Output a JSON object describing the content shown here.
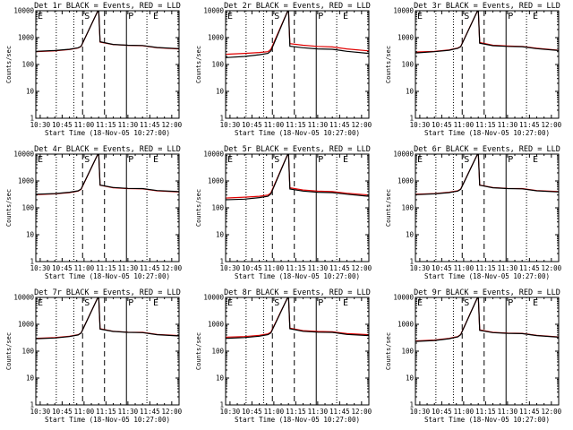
{
  "colors": {
    "events": "#000000",
    "lld": "#e00000",
    "background": "#ffffff"
  },
  "chart_data": [
    {
      "type": "line",
      "title": "Det 1r  BLACK = Events, RED = LLD",
      "xlabel": "Start Time (18-Nov-05 10:27:00)",
      "ylabel": "Counts/sec",
      "xlim": [
        "10:27",
        "12:05"
      ],
      "ylim": [
        1,
        10000
      ],
      "yscale": "log",
      "xticks": [
        "10:30",
        "10:45",
        "11:00",
        "11:15",
        "11:30",
        "11:45",
        "12:00"
      ],
      "yticks": [
        "1",
        "10",
        "100",
        "1000",
        "10000"
      ],
      "grid": false,
      "markers": [
        {
          "label": "S",
          "time": "10:59"
        },
        {
          "label": "P",
          "time": "11:29"
        },
        {
          "label": "E",
          "time": "11:46"
        }
      ],
      "dotted_lines": [
        "10:41",
        "10:53",
        "11:43"
      ],
      "dashed_lines": [
        "10:59",
        "11:14"
      ],
      "solid_lines": [
        "11:29"
      ],
      "series": [
        {
          "name": "Events",
          "x": [
            "10:27",
            "10:40",
            "10:50",
            "10:56",
            "10:58",
            "11:10",
            "11:11",
            "11:20",
            "11:30",
            "11:40",
            "11:50",
            "12:05"
          ],
          "values": [
            310,
            330,
            370,
            420,
            480,
            12000,
            700,
            560,
            520,
            510,
            430,
            390
          ]
        },
        {
          "name": "LLD",
          "x": [
            "10:27",
            "10:40",
            "10:50",
            "10:56",
            "10:58",
            "11:10",
            "11:11",
            "11:20",
            "11:30",
            "11:40",
            "11:50",
            "12:05"
          ],
          "values": [
            300,
            320,
            360,
            410,
            470,
            12000,
            680,
            550,
            515,
            500,
            420,
            380
          ]
        }
      ]
    },
    {
      "type": "line",
      "title": "Det 2r  BLACK = Events, RED = LLD",
      "xlabel": "Start Time (18-Nov-05 10:27:00)",
      "ylabel": "Counts/sec",
      "xlim": [
        "10:27",
        "12:05"
      ],
      "ylim": [
        1,
        10000
      ],
      "yscale": "log",
      "xticks": [
        "10:30",
        "10:45",
        "11:00",
        "11:15",
        "11:30",
        "11:45",
        "12:00"
      ],
      "yticks": [
        "1",
        "10",
        "100",
        "1000",
        "10000"
      ],
      "grid": false,
      "markers": [
        {
          "label": "S",
          "time": "10:59"
        },
        {
          "label": "P",
          "time": "11:29"
        },
        {
          "label": "E",
          "time": "11:46"
        }
      ],
      "dotted_lines": [
        "10:41",
        "10:53",
        "11:43"
      ],
      "dashed_lines": [
        "10:59",
        "11:14"
      ],
      "solid_lines": [
        "11:29"
      ],
      "series": [
        {
          "name": "Events",
          "x": [
            "10:27",
            "10:40",
            "10:50",
            "10:56",
            "10:58",
            "11:10",
            "11:11",
            "11:20",
            "11:30",
            "11:40",
            "11:50",
            "12:05"
          ],
          "values": [
            180,
            200,
            230,
            260,
            320,
            12000,
            480,
            420,
            380,
            370,
            310,
            260
          ]
        },
        {
          "name": "LLD",
          "x": [
            "10:27",
            "10:40",
            "10:50",
            "10:56",
            "10:58",
            "11:10",
            "11:11",
            "11:20",
            "11:30",
            "11:40",
            "11:50",
            "12:05"
          ],
          "values": [
            240,
            260,
            280,
            300,
            370,
            12000,
            600,
            520,
            470,
            450,
            380,
            320
          ]
        }
      ]
    },
    {
      "type": "line",
      "title": "Det 3r  BLACK = Events, RED = LLD",
      "xlabel": "Start Time (18-Nov-05 10:27:00)",
      "ylabel": "Counts/sec",
      "xlim": [
        "10:27",
        "12:05"
      ],
      "ylim": [
        1,
        10000
      ],
      "yscale": "log",
      "xticks": [
        "10:30",
        "10:45",
        "11:00",
        "11:15",
        "11:30",
        "11:45",
        "12:00"
      ],
      "yticks": [
        "1",
        "10",
        "100",
        "1000",
        "10000"
      ],
      "grid": false,
      "markers": [
        {
          "label": "S",
          "time": "10:59"
        },
        {
          "label": "P",
          "time": "11:29"
        },
        {
          "label": "E",
          "time": "11:46"
        }
      ],
      "dotted_lines": [
        "10:41",
        "10:53",
        "11:43"
      ],
      "dashed_lines": [
        "10:59",
        "11:14"
      ],
      "solid_lines": [
        "11:29"
      ],
      "series": [
        {
          "name": "Events",
          "x": [
            "10:27",
            "10:40",
            "10:50",
            "10:56",
            "10:58",
            "11:10",
            "11:11",
            "11:20",
            "11:30",
            "11:40",
            "11:50",
            "12:05"
          ],
          "values": [
            270,
            300,
            340,
            400,
            460,
            12000,
            620,
            500,
            470,
            460,
            390,
            330
          ]
        },
        {
          "name": "LLD",
          "x": [
            "10:27",
            "10:40",
            "10:50",
            "10:56",
            "10:58",
            "11:10",
            "11:11",
            "11:20",
            "11:30",
            "11:40",
            "11:50",
            "12:05"
          ],
          "values": [
            290,
            310,
            350,
            410,
            470,
            12000,
            660,
            520,
            490,
            470,
            400,
            340
          ]
        }
      ]
    },
    {
      "type": "line",
      "title": "Det 4r  BLACK = Events, RED = LLD",
      "xlabel": "Start Time (18-Nov-05 10:27:00)",
      "ylabel": "Counts/sec",
      "xlim": [
        "10:27",
        "12:05"
      ],
      "ylim": [
        1,
        10000
      ],
      "yscale": "log",
      "xticks": [
        "10:30",
        "10:45",
        "11:00",
        "11:15",
        "11:30",
        "11:45",
        "12:00"
      ],
      "yticks": [
        "1",
        "10",
        "100",
        "1000",
        "10000"
      ],
      "grid": false,
      "markers": [
        {
          "label": "S",
          "time": "10:59"
        },
        {
          "label": "P",
          "time": "11:29"
        },
        {
          "label": "E",
          "time": "11:46"
        }
      ],
      "dotted_lines": [
        "10:41",
        "10:53",
        "11:43"
      ],
      "dashed_lines": [
        "10:59",
        "11:14"
      ],
      "solid_lines": [
        "11:29"
      ],
      "series": [
        {
          "name": "Events",
          "x": [
            "10:27",
            "10:40",
            "10:50",
            "10:56",
            "10:58",
            "11:10",
            "11:11",
            "11:20",
            "11:30",
            "11:40",
            "11:50",
            "12:05"
          ],
          "values": [
            320,
            340,
            380,
            430,
            500,
            12000,
            700,
            570,
            530,
            520,
            440,
            400
          ]
        },
        {
          "name": "LLD",
          "x": [
            "10:27",
            "10:40",
            "10:50",
            "10:56",
            "10:58",
            "11:10",
            "11:11",
            "11:20",
            "11:30",
            "11:40",
            "11:50",
            "12:05"
          ],
          "values": [
            310,
            330,
            370,
            420,
            490,
            12000,
            690,
            560,
            520,
            510,
            430,
            390
          ]
        }
      ]
    },
    {
      "type": "line",
      "title": "Det 5r  BLACK = Events, RED = LLD",
      "xlabel": "Start Time (18-Nov-05 10:27:00)",
      "ylabel": "Counts/sec",
      "xlim": [
        "10:27",
        "12:05"
      ],
      "ylim": [
        1,
        10000
      ],
      "yscale": "log",
      "xticks": [
        "10:30",
        "10:45",
        "11:00",
        "11:15",
        "11:30",
        "11:45",
        "12:00"
      ],
      "yticks": [
        "1",
        "10",
        "100",
        "1000",
        "10000"
      ],
      "grid": false,
      "markers": [
        {
          "label": "S",
          "time": "10:59"
        },
        {
          "label": "P",
          "time": "11:29"
        },
        {
          "label": "E",
          "time": "11:46"
        }
      ],
      "dotted_lines": [
        "10:41",
        "10:53",
        "11:43"
      ],
      "dashed_lines": [
        "10:59",
        "11:14"
      ],
      "solid_lines": [
        "11:29"
      ],
      "series": [
        {
          "name": "Events",
          "x": [
            "10:27",
            "10:40",
            "10:50",
            "10:56",
            "10:58",
            "11:10",
            "11:11",
            "11:20",
            "11:30",
            "11:40",
            "11:50",
            "12:05"
          ],
          "values": [
            200,
            210,
            240,
            270,
            330,
            12000,
            500,
            420,
            380,
            370,
            320,
            270
          ]
        },
        {
          "name": "LLD",
          "x": [
            "10:27",
            "10:40",
            "10:50",
            "10:56",
            "10:58",
            "11:10",
            "11:11",
            "11:20",
            "11:30",
            "11:40",
            "11:50",
            "12:05"
          ],
          "values": [
            230,
            250,
            270,
            300,
            360,
            12000,
            560,
            460,
            420,
            400,
            350,
            300
          ]
        }
      ]
    },
    {
      "type": "line",
      "title": "Det 6r  BLACK = Events, RED = LLD",
      "xlabel": "Start Time (18-Nov-05 10:27:00)",
      "ylabel": "Counts/sec",
      "xlim": [
        "10:27",
        "12:05"
      ],
      "ylim": [
        1,
        10000
      ],
      "yscale": "log",
      "xticks": [
        "10:30",
        "10:45",
        "11:00",
        "11:15",
        "11:30",
        "11:45",
        "12:00"
      ],
      "yticks": [
        "1",
        "10",
        "100",
        "1000",
        "10000"
      ],
      "grid": false,
      "markers": [
        {
          "label": "S",
          "time": "10:59"
        },
        {
          "label": "P",
          "time": "11:29"
        },
        {
          "label": "E",
          "time": "11:46"
        }
      ],
      "dotted_lines": [
        "10:41",
        "10:53",
        "11:43"
      ],
      "dashed_lines": [
        "10:59",
        "11:14"
      ],
      "solid_lines": [
        "11:29"
      ],
      "series": [
        {
          "name": "Events",
          "x": [
            "10:27",
            "10:40",
            "10:50",
            "10:56",
            "10:58",
            "11:10",
            "11:11",
            "11:20",
            "11:30",
            "11:40",
            "11:50",
            "12:05"
          ],
          "values": [
            310,
            330,
            370,
            420,
            490,
            12000,
            690,
            560,
            520,
            510,
            430,
            390
          ]
        },
        {
          "name": "LLD",
          "x": [
            "10:27",
            "10:40",
            "10:50",
            "10:56",
            "10:58",
            "11:10",
            "11:11",
            "11:20",
            "11:30",
            "11:40",
            "11:50",
            "12:05"
          ],
          "values": [
            320,
            340,
            380,
            430,
            500,
            12000,
            700,
            570,
            530,
            520,
            440,
            400
          ]
        }
      ]
    },
    {
      "type": "line",
      "title": "Det 7r  BLACK = Events, RED = LLD",
      "xlabel": "Start Time (18-Nov-05 10:27:00)",
      "ylabel": "Counts/sec",
      "xlim": [
        "10:27",
        "12:05"
      ],
      "ylim": [
        1,
        10000
      ],
      "yscale": "log",
      "xticks": [
        "10:30",
        "10:45",
        "11:00",
        "11:15",
        "11:30",
        "11:45",
        "12:00"
      ],
      "yticks": [
        "1",
        "10",
        "100",
        "1000",
        "10000"
      ],
      "grid": false,
      "markers": [
        {
          "label": "S",
          "time": "10:59"
        },
        {
          "label": "P",
          "time": "11:29"
        },
        {
          "label": "E",
          "time": "11:46"
        }
      ],
      "dotted_lines": [
        "10:41",
        "10:53",
        "11:43"
      ],
      "dashed_lines": [
        "10:59",
        "11:14"
      ],
      "solid_lines": [
        "11:29"
      ],
      "series": [
        {
          "name": "Events",
          "x": [
            "10:27",
            "10:40",
            "10:50",
            "10:56",
            "10:58",
            "11:10",
            "11:11",
            "11:20",
            "11:30",
            "11:40",
            "11:50",
            "12:05"
          ],
          "values": [
            290,
            310,
            350,
            400,
            470,
            12000,
            660,
            540,
            500,
            490,
            410,
            370
          ]
        },
        {
          "name": "LLD",
          "x": [
            "10:27",
            "10:40",
            "10:50",
            "10:56",
            "10:58",
            "11:10",
            "11:11",
            "11:20",
            "11:30",
            "11:40",
            "11:50",
            "12:05"
          ],
          "values": [
            300,
            320,
            360,
            410,
            480,
            12000,
            680,
            550,
            510,
            500,
            420,
            380
          ]
        }
      ]
    },
    {
      "type": "line",
      "title": "Det 8r  BLACK = Events, RED = LLD",
      "xlabel": "Start Time (18-Nov-05 10:27:00)",
      "ylabel": "Counts/sec",
      "xlim": [
        "10:27",
        "12:05"
      ],
      "ylim": [
        1,
        10000
      ],
      "yscale": "log",
      "xticks": [
        "10:30",
        "10:45",
        "11:00",
        "11:15",
        "11:30",
        "11:45",
        "12:00"
      ],
      "yticks": [
        "1",
        "10",
        "100",
        "1000",
        "10000"
      ],
      "grid": false,
      "markers": [
        {
          "label": "S",
          "time": "10:59"
        },
        {
          "label": "P",
          "time": "11:29"
        },
        {
          "label": "E",
          "time": "11:46"
        }
      ],
      "dotted_lines": [
        "10:41",
        "10:53",
        "11:43"
      ],
      "dashed_lines": [
        "10:59",
        "11:14"
      ],
      "solid_lines": [
        "11:29"
      ],
      "series": [
        {
          "name": "Events",
          "x": [
            "10:27",
            "10:40",
            "10:50",
            "10:56",
            "10:58",
            "11:10",
            "11:11",
            "11:20",
            "11:30",
            "11:40",
            "11:50",
            "12:05"
          ],
          "values": [
            300,
            320,
            360,
            410,
            480,
            12000,
            680,
            550,
            510,
            500,
            420,
            380
          ]
        },
        {
          "name": "LLD",
          "x": [
            "10:27",
            "10:40",
            "10:50",
            "10:56",
            "10:58",
            "11:10",
            "11:11",
            "11:20",
            "11:30",
            "11:40",
            "11:50",
            "12:05"
          ],
          "values": [
            330,
            350,
            390,
            440,
            510,
            12000,
            720,
            580,
            540,
            530,
            450,
            410
          ]
        }
      ]
    },
    {
      "type": "line",
      "title": "Det 9r  BLACK = Events, RED = LLD",
      "xlabel": "Start Time (18-Nov-05 10:27:00)",
      "ylabel": "Counts/sec",
      "xlim": [
        "10:27",
        "12:05"
      ],
      "ylim": [
        1,
        10000
      ],
      "yscale": "log",
      "xticks": [
        "10:30",
        "10:45",
        "11:00",
        "11:15",
        "11:30",
        "11:45",
        "12:00"
      ],
      "yticks": [
        "1",
        "10",
        "100",
        "1000",
        "10000"
      ],
      "grid": false,
      "markers": [
        {
          "label": "S",
          "time": "10:59"
        },
        {
          "label": "P",
          "time": "11:29"
        },
        {
          "label": "E",
          "time": "11:46"
        }
      ],
      "dotted_lines": [
        "10:41",
        "10:53",
        "11:43"
      ],
      "dashed_lines": [
        "10:59",
        "11:14"
      ],
      "solid_lines": [
        "11:29"
      ],
      "series": [
        {
          "name": "Events",
          "x": [
            "10:27",
            "10:40",
            "10:50",
            "10:56",
            "10:58",
            "11:10",
            "11:11",
            "11:20",
            "11:30",
            "11:40",
            "11:50",
            "12:05"
          ],
          "values": [
            230,
            250,
            290,
            340,
            410,
            12000,
            600,
            490,
            460,
            450,
            380,
            330
          ]
        },
        {
          "name": "LLD",
          "x": [
            "10:27",
            "10:40",
            "10:50",
            "10:56",
            "10:58",
            "11:10",
            "11:11",
            "11:20",
            "11:30",
            "11:40",
            "11:50",
            "12:05"
          ],
          "values": [
            240,
            260,
            300,
            350,
            420,
            12000,
            620,
            500,
            470,
            460,
            390,
            340
          ]
        }
      ]
    }
  ]
}
